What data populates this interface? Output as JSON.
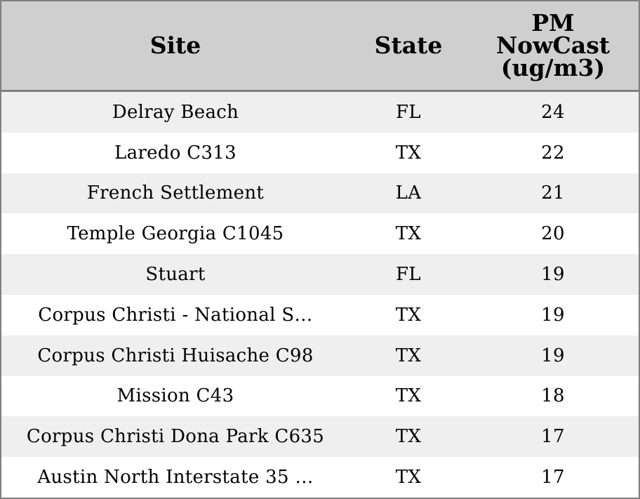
{
  "chart_data": {
    "type": "table",
    "columns": [
      "Site",
      "State",
      "PM\nNowCast\n(ug/m3)"
    ],
    "rows": [
      {
        "site": "Delray Beach",
        "state": "FL",
        "pm": 24
      },
      {
        "site": "Laredo C313",
        "state": "TX",
        "pm": 22
      },
      {
        "site": "French Settlement",
        "state": "LA",
        "pm": 21
      },
      {
        "site": "Temple Georgia C1045",
        "state": "TX",
        "pm": 20
      },
      {
        "site": "Stuart",
        "state": "FL",
        "pm": 19
      },
      {
        "site": "Corpus Christi - National S…",
        "state": "TX",
        "pm": 19
      },
      {
        "site": "Corpus Christi Huisache C98",
        "state": "TX",
        "pm": 19
      },
      {
        "site": "Mission C43",
        "state": "TX",
        "pm": 18
      },
      {
        "site": "Corpus Christi Dona Park C635",
        "state": "TX",
        "pm": 17
      },
      {
        "site": "Austin North Interstate 35 …",
        "state": "TX",
        "pm": 17
      }
    ]
  },
  "colors": {
    "header_bg": "#cfcfcf",
    "stripe_bg": "#efefef",
    "border": "#808080"
  }
}
